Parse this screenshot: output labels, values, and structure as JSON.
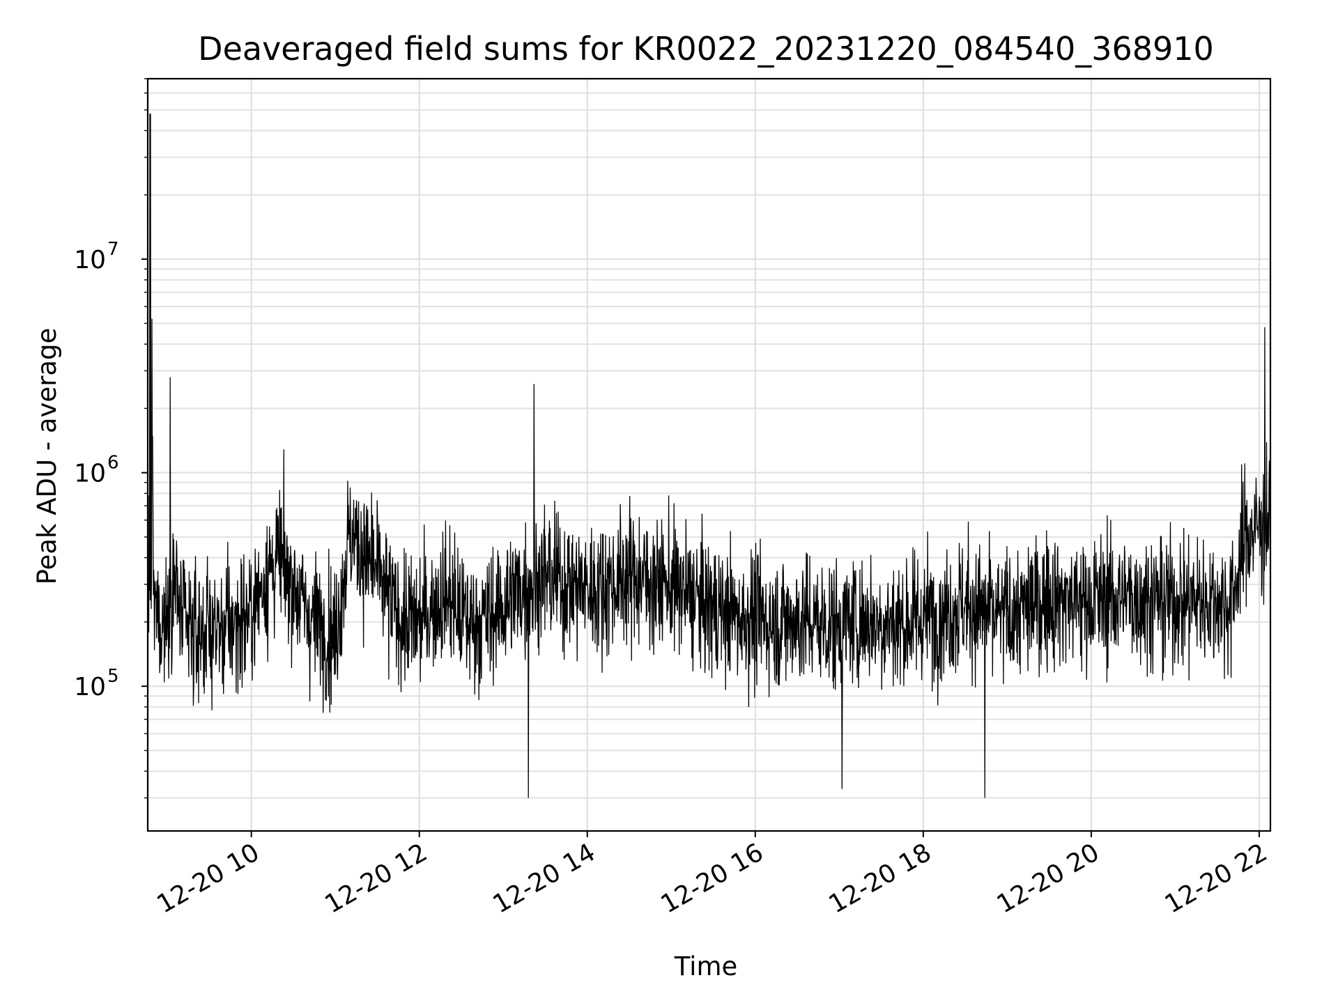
{
  "chart_data": {
    "type": "line",
    "title": "Deaveraged field sums for KR0022_20231220_084540_368910",
    "xlabel": "Time",
    "ylabel": "Peak ADU - average",
    "yscale": "log",
    "ylim": [
      21000,
      70000000
    ],
    "xlim": [
      "2023-12-20 08:46",
      "2023-12-20 22:08"
    ],
    "x_ticks": [
      {
        "value": "2023-12-20 10:00",
        "label": "12-20 10"
      },
      {
        "value": "2023-12-20 12:00",
        "label": "12-20 12"
      },
      {
        "value": "2023-12-20 14:00",
        "label": "12-20 14"
      },
      {
        "value": "2023-12-20 16:00",
        "label": "12-20 16"
      },
      {
        "value": "2023-12-20 18:00",
        "label": "12-20 18"
      },
      {
        "value": "2023-12-20 20:00",
        "label": "12-20 20"
      },
      {
        "value": "2023-12-20 22:00",
        "label": "12-20 22"
      }
    ],
    "y_ticks": [
      {
        "value": 100000,
        "base": "10",
        "exp": "5"
      },
      {
        "value": 1000000,
        "base": "10",
        "exp": "6"
      },
      {
        "value": 10000000,
        "base": "10",
        "exp": "7"
      }
    ],
    "grid": true,
    "line_color": "#000000",
    "series": [
      {
        "x": [
          "2023-12-20 08:46",
          "2023-12-20 08:48",
          "2023-12-20 08:50",
          "2023-12-20 08:55",
          "2023-12-20 09:00",
          "2023-12-20 09:05",
          "2023-12-20 09:10",
          "2023-12-20 09:15",
          "2023-12-20 09:20",
          "2023-12-20 09:30",
          "2023-12-20 09:40",
          "2023-12-20 09:50",
          "2023-12-20 10:00",
          "2023-12-20 10:10",
          "2023-12-20 10:20",
          "2023-12-20 10:30",
          "2023-12-20 10:40",
          "2023-12-20 10:50",
          "2023-12-20 11:00",
          "2023-12-20 11:10",
          "2023-12-20 11:20",
          "2023-12-20 11:30",
          "2023-12-20 11:40",
          "2023-12-20 11:50",
          "2023-12-20 12:00",
          "2023-12-20 12:10",
          "2023-12-20 12:20",
          "2023-12-20 12:30",
          "2023-12-20 12:40",
          "2023-12-20 12:50",
          "2023-12-20 13:00",
          "2023-12-20 13:10",
          "2023-12-20 13:20",
          "2023-12-20 13:30",
          "2023-12-20 13:40",
          "2023-12-20 13:50",
          "2023-12-20 14:00",
          "2023-12-20 14:10",
          "2023-12-20 14:20",
          "2023-12-20 14:30",
          "2023-12-20 14:40",
          "2023-12-20 14:50",
          "2023-12-20 15:00",
          "2023-12-20 15:10",
          "2023-12-20 15:20",
          "2023-12-20 15:30",
          "2023-12-20 15:40",
          "2023-12-20 15:50",
          "2023-12-20 16:00",
          "2023-12-20 16:10",
          "2023-12-20 16:20",
          "2023-12-20 16:30",
          "2023-12-20 16:40",
          "2023-12-20 16:50",
          "2023-12-20 17:00",
          "2023-12-20 17:10",
          "2023-12-20 17:20",
          "2023-12-20 17:30",
          "2023-12-20 17:40",
          "2023-12-20 17:50",
          "2023-12-20 18:00",
          "2023-12-20 18:10",
          "2023-12-20 18:20",
          "2023-12-20 18:30",
          "2023-12-20 18:40",
          "2023-12-20 18:50",
          "2023-12-20 19:00",
          "2023-12-20 19:10",
          "2023-12-20 19:20",
          "2023-12-20 19:30",
          "2023-12-20 19:40",
          "2023-12-20 19:50",
          "2023-12-20 20:00",
          "2023-12-20 20:10",
          "2023-12-20 20:20",
          "2023-12-20 20:30",
          "2023-12-20 20:40",
          "2023-12-20 20:50",
          "2023-12-20 21:00",
          "2023-12-20 21:10",
          "2023-12-20 21:20",
          "2023-12-20 21:30",
          "2023-12-20 21:40",
          "2023-12-20 21:50",
          "2023-12-20 22:00",
          "2023-12-20 22:08"
        ],
        "y": [
          300000,
          48000000,
          250000,
          200000,
          210000,
          330000,
          200000,
          180000,
          175000,
          190000,
          180000,
          200000,
          220000,
          330000,
          400000,
          300000,
          220000,
          190000,
          170000,
          520000,
          420000,
          340000,
          240000,
          200000,
          200000,
          240000,
          270000,
          210000,
          200000,
          210000,
          240000,
          280000,
          300000,
          330000,
          310000,
          300000,
          280000,
          290000,
          310000,
          330000,
          320000,
          300000,
          300000,
          270000,
          250000,
          230000,
          220000,
          210000,
          210000,
          200000,
          200000,
          205000,
          200000,
          195000,
          190000,
          200000,
          205000,
          200000,
          195000,
          200000,
          210000,
          215000,
          230000,
          240000,
          230000,
          210000,
          215000,
          225000,
          240000,
          260000,
          255000,
          250000,
          250000,
          255000,
          260000,
          260000,
          255000,
          250000,
          250000,
          255000,
          250000,
          250000,
          240000,
          500000,
          560000,
          600000
        ]
      }
    ],
    "notes_on_visible_features": {
      "spikes": [
        {
          "x": "2023-12-20 08:48",
          "y": 48000000
        },
        {
          "x": "2023-12-20 09:02",
          "y": 2800000
        },
        {
          "x": "2023-12-20 13:22",
          "y": 2600000
        },
        {
          "x": "2023-12-20 22:04",
          "y": 4800000
        }
      ],
      "dips": [
        {
          "x": "2023-12-20 13:18",
          "y": 30000
        },
        {
          "x": "2023-12-20 17:02",
          "y": 33000
        },
        {
          "x": "2023-12-20 18:44",
          "y": 30000
        }
      ]
    }
  }
}
